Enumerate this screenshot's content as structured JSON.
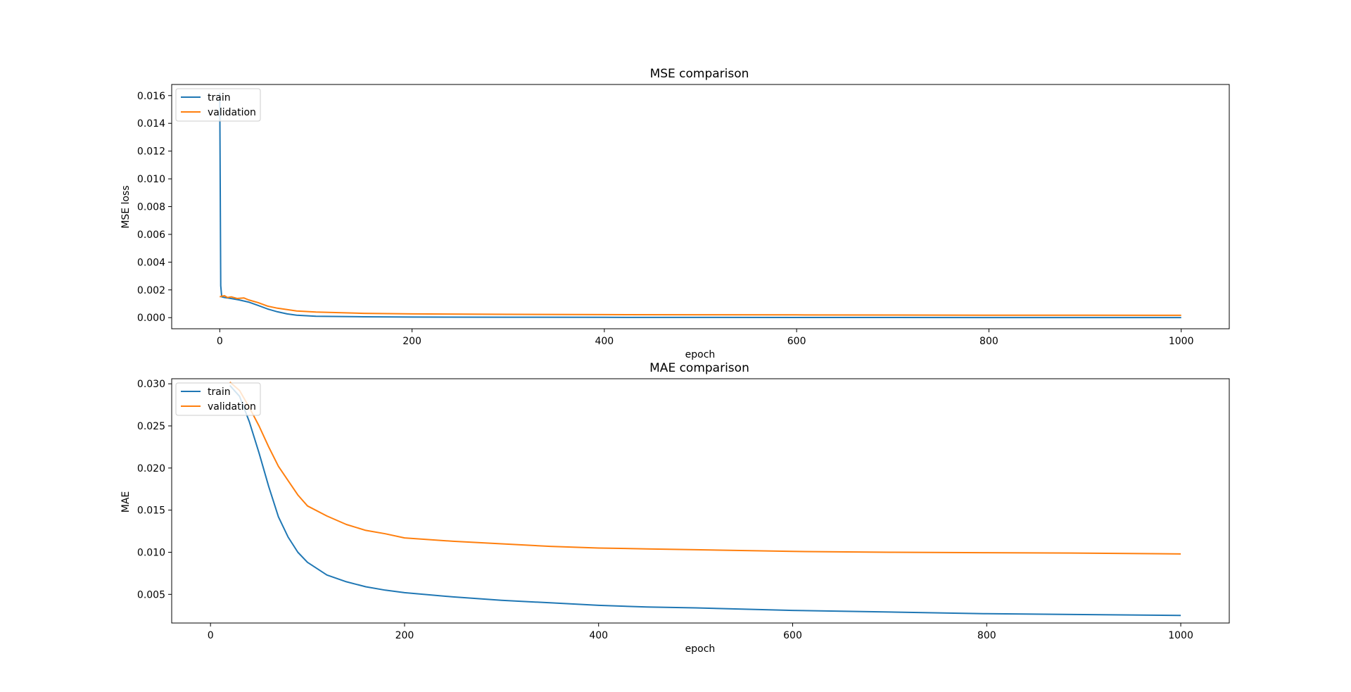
{
  "chart_data": [
    {
      "type": "line",
      "title": "MSE comparison",
      "xlabel": "epoch",
      "ylabel": "MSE loss",
      "xlim": [
        -50,
        1050
      ],
      "ylim": [
        -0.0008,
        0.0168
      ],
      "xticks": [
        0,
        200,
        400,
        600,
        800,
        1000
      ],
      "xtick_labels": [
        "0",
        "200",
        "400",
        "600",
        "800",
        "1000"
      ],
      "yticks": [
        0.0,
        0.002,
        0.004,
        0.006,
        0.008,
        0.01,
        0.012,
        0.014,
        0.016
      ],
      "ytick_labels": [
        "0.000",
        "0.002",
        "0.004",
        "0.006",
        "0.008",
        "0.010",
        "0.012",
        "0.014",
        "0.016"
      ],
      "legend": "top-left",
      "grid": false,
      "series": [
        {
          "name": "train",
          "color": "#1f77b4",
          "x": [
            0,
            1,
            2,
            5,
            10,
            20,
            30,
            40,
            50,
            60,
            70,
            80,
            100,
            150,
            200,
            300,
            400,
            500,
            600,
            700,
            800,
            900,
            1000
          ],
          "y": [
            0.0162,
            0.0023,
            0.0015,
            0.00145,
            0.0014,
            0.00128,
            0.00112,
            0.00088,
            0.00062,
            0.00042,
            0.00027,
            0.00018,
            0.0001,
            6e-05,
            4e-05,
            3e-05,
            2e-05,
            1.5e-05,
            1.2e-05,
            1e-05,
            8e-06,
            6e-06,
            5e-06
          ]
        },
        {
          "name": "validation",
          "color": "#ff7f0e",
          "x": [
            0,
            2,
            5,
            8,
            12,
            18,
            25,
            30,
            40,
            50,
            60,
            70,
            80,
            100,
            150,
            200,
            300,
            400,
            500,
            600,
            700,
            800,
            900,
            1000
          ],
          "y": [
            0.0015,
            0.00155,
            0.00158,
            0.00145,
            0.0015,
            0.00138,
            0.00142,
            0.00128,
            0.00108,
            0.00083,
            0.00068,
            0.00058,
            0.00048,
            0.0004,
            0.00031,
            0.00027,
            0.00024,
            0.00022,
            0.00021,
            0.0002,
            0.00019,
            0.00018,
            0.000175,
            0.00017
          ]
        }
      ]
    },
    {
      "type": "line",
      "title": "MAE comparison",
      "xlabel": "epoch",
      "ylabel": "MAE",
      "xlim": [
        -40,
        1050
      ],
      "ylim": [
        0.0016,
        0.0306
      ],
      "xticks": [
        0,
        200,
        400,
        600,
        800,
        1000
      ],
      "xtick_labels": [
        "0",
        "200",
        "400",
        "600",
        "800",
        "1000"
      ],
      "yticks": [
        0.005,
        0.01,
        0.015,
        0.02,
        0.025,
        0.03
      ],
      "ytick_labels": [
        "0.005",
        "0.010",
        "0.015",
        "0.020",
        "0.025",
        "0.030"
      ],
      "legend": "top-left",
      "grid": false,
      "series": [
        {
          "name": "train",
          "color": "#1f77b4",
          "x": [
            20,
            30,
            40,
            50,
            60,
            70,
            80,
            90,
            100,
            120,
            140,
            160,
            180,
            200,
            250,
            300,
            350,
            400,
            450,
            500,
            600,
            700,
            800,
            900,
            1000
          ],
          "y": [
            0.0298,
            0.0285,
            0.0255,
            0.0218,
            0.0178,
            0.0142,
            0.0118,
            0.01,
            0.0088,
            0.0073,
            0.0065,
            0.0059,
            0.0055,
            0.0052,
            0.0047,
            0.0043,
            0.004,
            0.0037,
            0.0035,
            0.0034,
            0.0031,
            0.0029,
            0.0027,
            0.0026,
            0.0025
          ]
        },
        {
          "name": "validation",
          "color": "#ff7f0e",
          "x": [
            20,
            30,
            40,
            50,
            60,
            70,
            80,
            90,
            100,
            120,
            140,
            160,
            180,
            200,
            250,
            300,
            350,
            400,
            450,
            500,
            600,
            700,
            800,
            900,
            1000
          ],
          "y": [
            0.0302,
            0.0292,
            0.0272,
            0.025,
            0.0225,
            0.0202,
            0.0185,
            0.0168,
            0.0155,
            0.0143,
            0.0133,
            0.0126,
            0.0122,
            0.0117,
            0.0113,
            0.011,
            0.0107,
            0.0105,
            0.0104,
            0.0103,
            0.0101,
            0.01,
            0.00995,
            0.0099,
            0.0098
          ]
        }
      ]
    }
  ]
}
